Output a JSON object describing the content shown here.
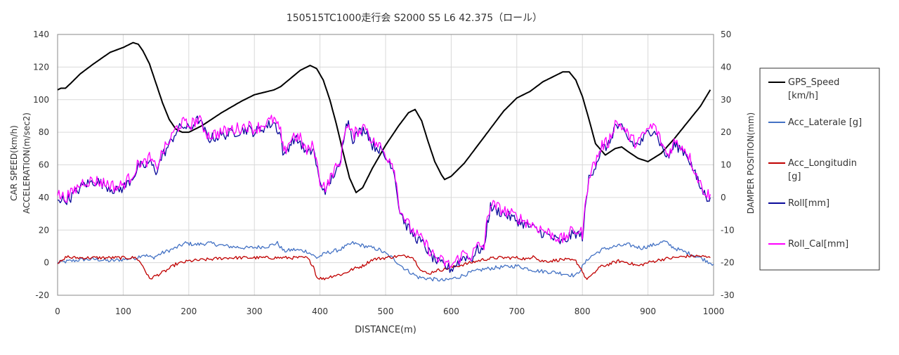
{
  "chart_data": {
    "type": "line",
    "title": "150515TC1000走行会 S2000 S5 L6 42.375（ロール）",
    "xlabel": "DISTANCE(m)",
    "ylabel_left_line1": "CAR SPEED(km/h)",
    "ylabel_left_line2": "ACCELERATION(m/sec2)",
    "ylabel_right": "DAMPER POSITION(mm)",
    "xlim": [
      0,
      1000
    ],
    "ylim_left": [
      -20,
      140
    ],
    "ylim_right": [
      -30,
      50
    ],
    "x_ticks": [
      "0",
      "100",
      "200",
      "300",
      "400",
      "500",
      "600",
      "700",
      "800",
      "900",
      "1000"
    ],
    "y_left_ticks": [
      "-20",
      "0",
      "20",
      "40",
      "60",
      "80",
      "100",
      "120",
      "140"
    ],
    "y_right_ticks": [
      "-30",
      "-20",
      "-10",
      "0",
      "10",
      "20",
      "30",
      "40",
      "50"
    ],
    "grid": true,
    "legend_position": "right",
    "series": [
      {
        "name": "GPS_Speed [km/h]",
        "legend_line1": "GPS_Speed",
        "legend_line2": "[km/h]",
        "axis": "left",
        "color": "#000000",
        "x": [
          0,
          5,
          12,
          20,
          35,
          55,
          80,
          100,
          115,
          123,
          130,
          140,
          150,
          160,
          170,
          180,
          190,
          200,
          220,
          250,
          280,
          300,
          320,
          330,
          340,
          355,
          370,
          385,
          395,
          405,
          415,
          425,
          435,
          445,
          455,
          465,
          480,
          500,
          520,
          535,
          545,
          555,
          565,
          575,
          585,
          590,
          600,
          620,
          650,
          680,
          700,
          720,
          740,
          760,
          770,
          780,
          790,
          800,
          810,
          820,
          835,
          850,
          860,
          870,
          885,
          900,
          920,
          940,
          960,
          980,
          995
        ],
        "y": [
          106,
          107,
          107,
          110,
          116,
          122,
          129,
          132,
          135,
          134,
          130,
          122,
          110,
          98,
          88,
          82,
          80,
          80,
          84,
          92,
          99,
          103,
          105,
          106,
          108,
          113,
          118,
          121,
          119,
          112,
          100,
          85,
          68,
          52,
          43,
          46,
          58,
          72,
          84,
          92,
          94,
          87,
          74,
          62,
          54,
          51,
          53,
          61,
          77,
          93,
          101,
          105,
          111,
          115,
          117,
          117,
          112,
          102,
          88,
          73,
          66,
          70,
          71,
          68,
          64,
          62,
          67,
          76,
          86,
          96,
          106
        ]
      },
      {
        "name": "Acc_Laterale [g]",
        "legend_line1": "Acc_Laterale [g]",
        "legend_line2": "",
        "axis": "left",
        "color": "#4472c4",
        "x": [
          0,
          20,
          40,
          60,
          80,
          100,
          120,
          130,
          145,
          160,
          180,
          195,
          210,
          230,
          260,
          290,
          320,
          335,
          345,
          360,
          380,
          395,
          410,
          430,
          450,
          470,
          490,
          510,
          530,
          550,
          570,
          590,
          610,
          630,
          650,
          670,
          700,
          730,
          760,
          790,
          810,
          830,
          850,
          870,
          890,
          910,
          925,
          940,
          960,
          980,
          1000
        ],
        "y": [
          0,
          1,
          2,
          2,
          1,
          2,
          3,
          5,
          3,
          6,
          9,
          12,
          11,
          12,
          10,
          9,
          10,
          12,
          7,
          8,
          7,
          3,
          6,
          8,
          12,
          10,
          8,
          3,
          -4,
          -9,
          -10,
          -11,
          -9,
          -6,
          -4,
          -3,
          -2,
          -5,
          -6,
          -8,
          3,
          8,
          10,
          11,
          9,
          11,
          13,
          9,
          6,
          3,
          -1
        ]
      },
      {
        "name": "Acc_Longitudin [g]",
        "legend_line1": "Acc_Longitudin",
        "legend_line2": "[g]",
        "axis": "left",
        "color": "#c00000",
        "x": [
          0,
          8,
          14,
          20,
          50,
          90,
          120,
          130,
          140,
          150,
          165,
          180,
          200,
          230,
          260,
          300,
          340,
          380,
          390,
          395,
          405,
          420,
          435,
          450,
          465,
          480,
          500,
          520,
          540,
          555,
          565,
          575,
          590,
          610,
          630,
          650,
          670,
          700,
          720,
          725,
          735,
          750,
          770,
          790,
          800,
          805,
          815,
          825,
          840,
          855,
          870,
          885,
          900,
          920,
          940,
          960,
          980,
          995
        ],
        "y": [
          0,
          1,
          4,
          3,
          3,
          3,
          3,
          -2,
          -10,
          -8,
          -5,
          -1,
          1,
          2,
          3,
          3,
          3,
          3,
          -2,
          -9,
          -10,
          -8,
          -7,
          -4,
          -2,
          2,
          3,
          4,
          4,
          -5,
          -7,
          -5,
          -4,
          -2,
          0,
          2,
          3,
          3,
          2,
          5,
          1,
          1,
          2,
          1,
          -5,
          -10,
          -8,
          -3,
          -1,
          1,
          0,
          -2,
          0,
          2,
          3,
          4,
          4,
          3
        ]
      },
      {
        "name": "Roll[mm]",
        "legend_line1": "Roll[mm]",
        "legend_line2": "",
        "axis": "right",
        "color": "#0a0a9a",
        "x": [
          0,
          10,
          20,
          30,
          40,
          60,
          80,
          90,
          100,
          110,
          120,
          125,
          130,
          140,
          150,
          160,
          170,
          180,
          190,
          200,
          215,
          230,
          250,
          270,
          290,
          300,
          310,
          320,
          330,
          340,
          345,
          350,
          360,
          370,
          380,
          390,
          400,
          410,
          420,
          430,
          440,
          445,
          450,
          460,
          470,
          480,
          490,
          500,
          510,
          515,
          520,
          530,
          540,
          550,
          560,
          570,
          580,
          590,
          600,
          610,
          620,
          630,
          640,
          650,
          655,
          660,
          670,
          680,
          690,
          700,
          710,
          720,
          730,
          740,
          750,
          760,
          770,
          780,
          790,
          800,
          810,
          820,
          830,
          840,
          850,
          860,
          870,
          880,
          890,
          900,
          910,
          920,
          930,
          940,
          950,
          960,
          970,
          980,
          990,
          995
        ],
        "y": [
          0,
          -1,
          0,
          2,
          4,
          5,
          3,
          2,
          3,
          5,
          8,
          10,
          9,
          11,
          8,
          13,
          16,
          20,
          22,
          21,
          24,
          18,
          19,
          20,
          21,
          20,
          21,
          22,
          23,
          19,
          12,
          15,
          18,
          17,
          13,
          15,
          4,
          2,
          7,
          9,
          24,
          22,
          18,
          20,
          21,
          16,
          15,
          12,
          10,
          6,
          -3,
          -8,
          -11,
          -13,
          -15,
          -18,
          -20,
          -21,
          -22,
          -20,
          -18,
          -19,
          -16,
          -16,
          -8,
          -3,
          -4,
          -5,
          -6,
          -7,
          -8,
          -9,
          -10,
          -11,
          -12,
          -13,
          -14,
          -12,
          -11,
          -12,
          6,
          10,
          15,
          16,
          22,
          21,
          18,
          16,
          17,
          20,
          21,
          16,
          12,
          16,
          15,
          13,
          8,
          3,
          0,
          0
        ]
      },
      {
        "name": "Roll_Cal[mm]",
        "legend_line1": "Roll_Cal[mm]",
        "legend_line2": "",
        "axis": "right",
        "color": "#ff00ff",
        "x": [
          0,
          10,
          20,
          30,
          40,
          60,
          80,
          90,
          100,
          110,
          120,
          125,
          130,
          140,
          150,
          160,
          170,
          180,
          190,
          200,
          215,
          230,
          250,
          270,
          290,
          300,
          310,
          320,
          330,
          340,
          345,
          350,
          360,
          370,
          380,
          390,
          400,
          410,
          420,
          430,
          440,
          445,
          450,
          460,
          470,
          480,
          490,
          500,
          510,
          515,
          520,
          530,
          540,
          550,
          560,
          570,
          580,
          590,
          600,
          610,
          620,
          630,
          640,
          650,
          655,
          660,
          670,
          680,
          690,
          700,
          710,
          720,
          730,
          740,
          750,
          760,
          770,
          780,
          790,
          800,
          810,
          820,
          830,
          840,
          850,
          860,
          870,
          880,
          890,
          900,
          910,
          920,
          930,
          940,
          950,
          960,
          970,
          980,
          990,
          995
        ],
        "y": [
          1,
          0,
          1,
          3,
          5,
          5,
          4,
          3,
          4,
          6,
          9,
          11,
          10,
          12,
          9,
          14,
          17,
          21,
          23,
          22,
          24,
          19,
          20,
          21,
          22,
          21,
          22,
          23,
          24,
          20,
          13,
          16,
          19,
          18,
          14,
          16,
          5,
          3,
          8,
          10,
          23,
          21,
          19,
          21,
          22,
          17,
          16,
          13,
          11,
          7,
          -2,
          -7,
          -10,
          -12,
          -14,
          -17,
          -19,
          -20,
          -21,
          -19,
          -17,
          -18,
          -15,
          -15,
          -7,
          -2,
          -3,
          -4,
          -5,
          -6,
          -7,
          -8,
          -9,
          -10,
          -11,
          -12,
          -13,
          -11,
          -10,
          -11,
          7,
          11,
          16,
          17,
          23,
          22,
          19,
          17,
          18,
          21,
          22,
          17,
          13,
          17,
          16,
          14,
          9,
          4,
          1,
          1
        ]
      }
    ]
  }
}
